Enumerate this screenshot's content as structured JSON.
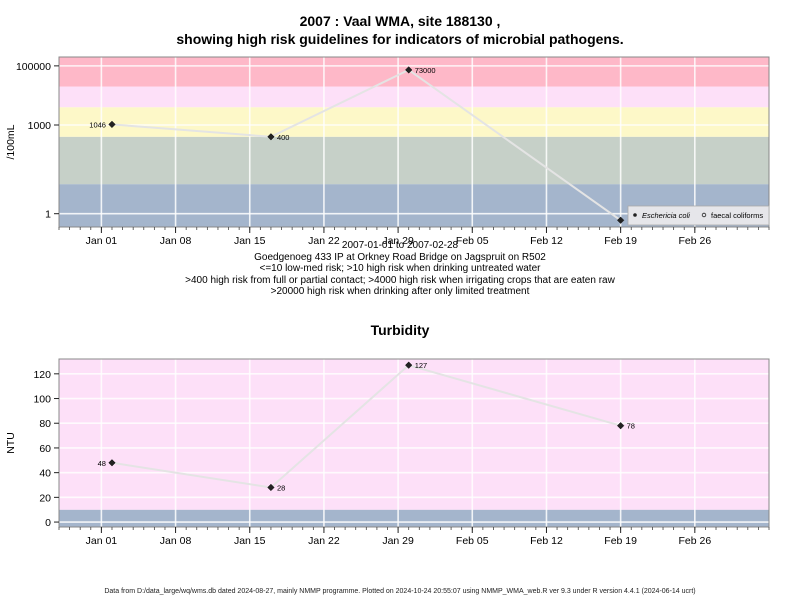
{
  "chart_data": [
    {
      "type": "scatter",
      "title_line1": "2007 : Vaal WMA, site 188130 ,",
      "title_line2": "showing high risk guidelines for indicators of microbial pathogens.",
      "ylabel": "/100mL",
      "yscale": "log",
      "ytick_labels": [
        "100000",
        "1000",
        "1"
      ],
      "xtick_labels": [
        "Jan 01",
        "Jan 08",
        "Jan 15",
        "Jan 22",
        "Jan 29",
        "Feb 05",
        "Feb 12",
        "Feb 19",
        "Feb 26"
      ],
      "xlim": [
        "2006-12-28",
        "2007-03-05"
      ],
      "ylim_log10": [
        -0.45,
        5.3
      ],
      "bands": [
        {
          "from": 0.1,
          "to": 10,
          "color": "#a4b5cc"
        },
        {
          "from": 10,
          "to": 400,
          "color": "#c6d0c8"
        },
        {
          "from": 400,
          "to": 4000,
          "color": "#fdf8c8"
        },
        {
          "from": 4000,
          "to": 20000,
          "color": "#fde0f8"
        },
        {
          "from": 20000,
          "to": 200000,
          "color": "#feb8c8"
        }
      ],
      "series": [
        {
          "name": "Eschericia coli",
          "x": [
            "2007-01-02",
            "2007-01-17",
            "2007-01-30",
            "2007-02-19"
          ],
          "y": [
            1046,
            400,
            73000,
            0.6
          ],
          "point_labels": [
            "1046",
            "400",
            "73000",
            ""
          ]
        }
      ],
      "legend": {
        "position": "bottom-right",
        "items": [
          "Eschericia coli",
          "faecal coliforms"
        ]
      }
    },
    {
      "type": "scatter",
      "title": "Turbidity",
      "ylabel": "NTU",
      "ytick_labels": [
        "0",
        "20",
        "40",
        "60",
        "80",
        "100",
        "120"
      ],
      "ylim": [
        -4,
        132
      ],
      "xtick_labels": [
        "Jan 01",
        "Jan 08",
        "Jan 15",
        "Jan 22",
        "Jan 29",
        "Feb 05",
        "Feb 12",
        "Feb 19",
        "Feb 26"
      ],
      "xlim": [
        "2006-12-28",
        "2007-03-05"
      ],
      "bands": [
        {
          "from": -4,
          "to": 10,
          "color": "#a4b5cc"
        },
        {
          "from": 10,
          "to": 132,
          "color": "#fde0f8"
        }
      ],
      "series": [
        {
          "name": "",
          "x": [
            "2007-01-02",
            "2007-01-17",
            "2007-01-30",
            "2007-02-19"
          ],
          "y": [
            48,
            28,
            127,
            78
          ],
          "point_labels": [
            "48",
            "28",
            "127",
            "78"
          ]
        }
      ]
    }
  ],
  "caption": {
    "line1": "2007-01-01 to 2007-02-28",
    "line2": "Goedgenoeg 433 IP at Orkney Road Bridge on Jagspruit on R502",
    "line3": "<=10 low-med risk; >10 high risk when drinking untreated water",
    "line4": ">400 high risk from full or partial contact; >4000 high risk when irrigating crops that are eaten raw",
    "line5": ">20000 high risk when drinking after only limited treatment"
  },
  "footer": "Data from D:/data_large/wq/wms.db dated 2024-08-27, mainly NMMP programme. Plotted on 2024-10-24 20:55:07 using NMMP_WMA_web.R ver 9.3 under R version 4.4.1 (2024-06-14 ucrt)"
}
